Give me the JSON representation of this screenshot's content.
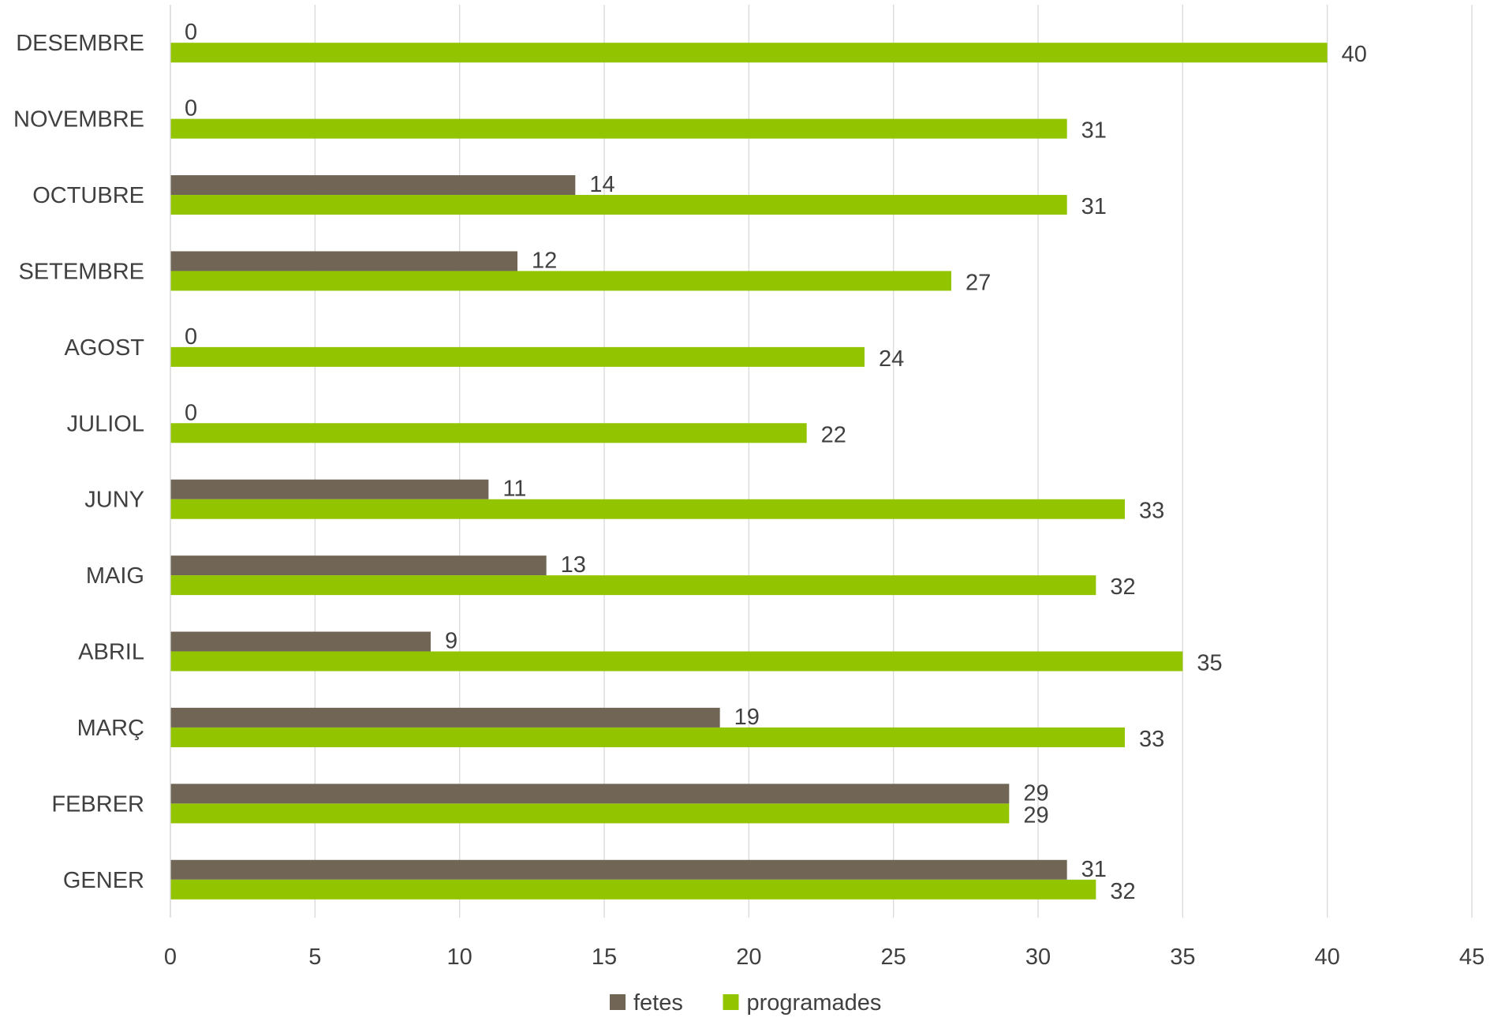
{
  "chart_data": {
    "type": "bar",
    "orientation": "horizontal",
    "categories": [
      "GENER",
      "FEBRER",
      "MARÇ",
      "ABRIL",
      "MAIG",
      "JUNY",
      "JULIOL",
      "AGOST",
      "SETEMBRE",
      "OCTUBRE",
      "NOVEMBRE",
      "DESEMBRE"
    ],
    "series": [
      {
        "name": "fetes",
        "color": "#716655",
        "values": [
          31,
          29,
          19,
          9,
          13,
          11,
          0,
          0,
          12,
          14,
          0,
          0
        ]
      },
      {
        "name": "programades",
        "color": "#92c400",
        "values": [
          32,
          29,
          33,
          35,
          32,
          33,
          22,
          24,
          27,
          31,
          31,
          40
        ]
      }
    ],
    "xlim": [
      0,
      45
    ],
    "xticks": [
      0,
      5,
      10,
      15,
      20,
      25,
      30,
      35,
      40,
      45
    ],
    "grid": "vertical",
    "legend": "bottom",
    "title": "",
    "xlabel": "",
    "ylabel": ""
  }
}
